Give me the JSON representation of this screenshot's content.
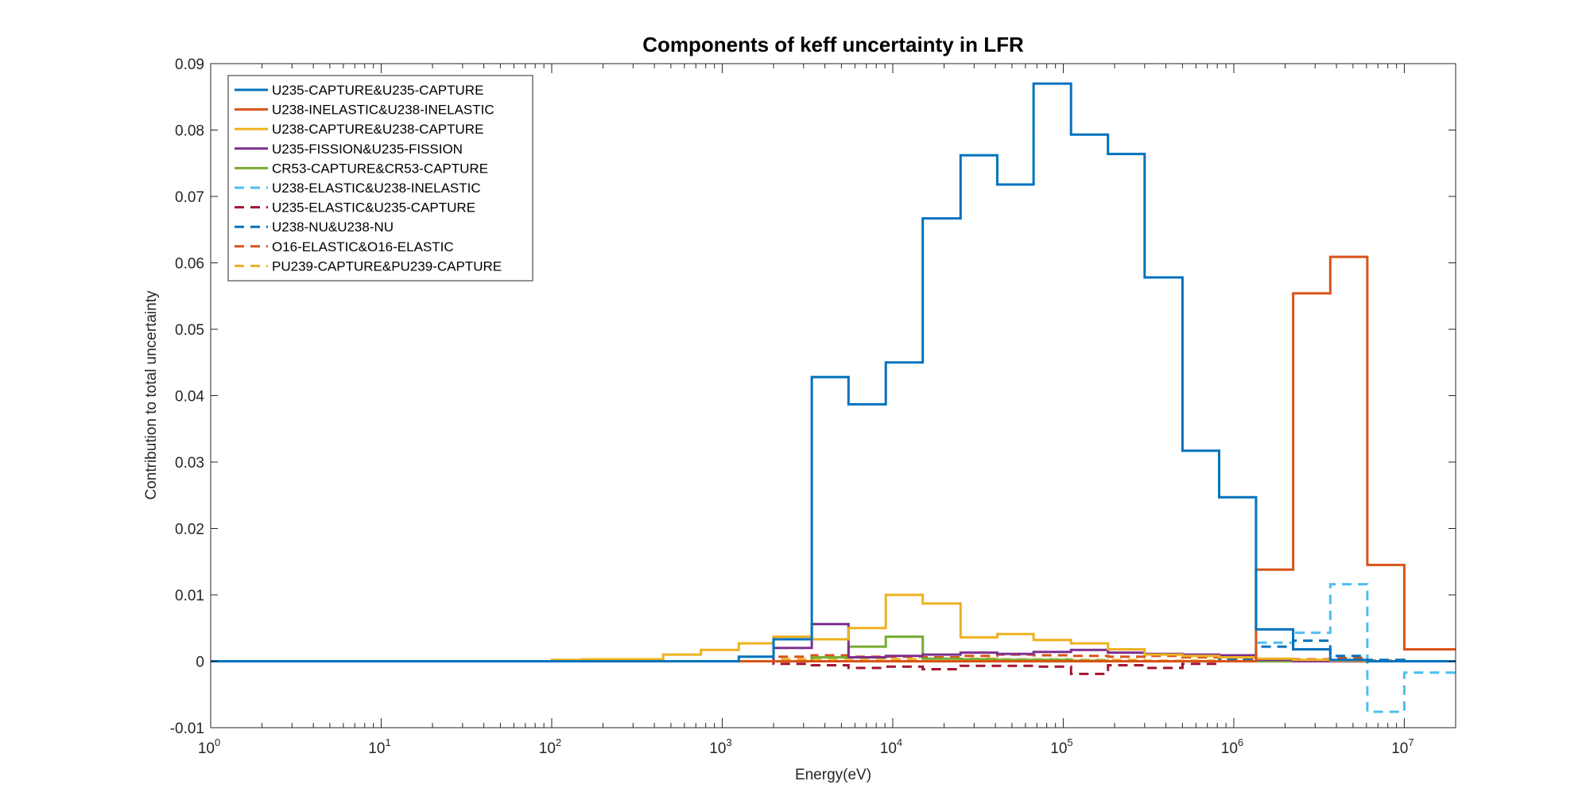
{
  "chart_data": {
    "type": "line",
    "title": "Components of keff uncertainty in LFR",
    "xlabel": "Energy(eV)",
    "ylabel": "Contribution to total uncertainty",
    "xscale": "log",
    "xlim": [
      1,
      20000000
    ],
    "ylim": [
      -0.01,
      0.09
    ],
    "grid": false,
    "legend_position": "top-left",
    "x_ticks": [
      {
        "base": "10",
        "exp": "0",
        "value": 1
      },
      {
        "base": "10",
        "exp": "1",
        "value": 10
      },
      {
        "base": "10",
        "exp": "2",
        "value": 100
      },
      {
        "base": "10",
        "exp": "3",
        "value": 1000
      },
      {
        "base": "10",
        "exp": "4",
        "value": 10000
      },
      {
        "base": "10",
        "exp": "5",
        "value": 100000
      },
      {
        "base": "10",
        "exp": "6",
        "value": 1000000
      },
      {
        "base": "10",
        "exp": "7",
        "value": 10000000
      }
    ],
    "y_ticks": [
      {
        "label": "-0.01",
        "value": -0.01
      },
      {
        "label": "0",
        "value": 0
      },
      {
        "label": "0.01",
        "value": 0.01
      },
      {
        "label": "0.02",
        "value": 0.02
      },
      {
        "label": "0.03",
        "value": 0.03
      },
      {
        "label": "0.04",
        "value": 0.04
      },
      {
        "label": "0.05",
        "value": 0.05
      },
      {
        "label": "0.06",
        "value": 0.06
      },
      {
        "label": "0.07",
        "value": 0.07
      },
      {
        "label": "0.08",
        "value": 0.08
      },
      {
        "label": "0.09",
        "value": 0.09
      }
    ],
    "energy_bin_edges": [
      1,
      100.0,
      150,
      240,
      450,
      750,
      1250,
      2000,
      3350,
      5500,
      9100,
      15000,
      25000,
      41000,
      67000,
      111000,
      183000,
      300000,
      500000,
      820000,
      1350000,
      2230000,
      3680000,
      6070000,
      10000000,
      20000000
    ],
    "series": [
      {
        "name": "U235-CAPTURE&U235-CAPTURE",
        "color": "#0072BD",
        "dash": "solid",
        "values": [
          0,
          0,
          0,
          0,
          0,
          0,
          0.0007,
          0.0033,
          0.0428,
          0.0387,
          0.045,
          0.0667,
          0.0762,
          0.0718,
          0.087,
          0.0793,
          0.0764,
          0.0578,
          0.0317,
          0.0247,
          0.0048,
          0.0018,
          0.0002,
          0,
          0
        ]
      },
      {
        "name": "U238-INELASTIC&U238-INELASTIC",
        "color": "#D95319",
        "dash": "solid",
        "values": [
          0,
          0,
          0,
          0,
          0,
          0,
          0,
          0,
          0,
          0,
          0,
          0,
          0,
          0,
          0,
          0,
          0,
          0,
          0,
          0,
          0.0138,
          0.0554,
          0.0609,
          0.0145,
          0.0018
        ]
      },
      {
        "name": "U238-CAPTURE&U238-CAPTURE",
        "color": "#EDB120",
        "dash": "solid",
        "values": [
          0,
          0.0002,
          0.0003,
          0.0003,
          0.001,
          0.0017,
          0.0027,
          0.0037,
          0.0033,
          0.005,
          0.01,
          0.0087,
          0.0036,
          0.0041,
          0.0032,
          0.0027,
          0.0018,
          0.001,
          0.0008,
          0.0006,
          0.0004,
          0.0002,
          0.0001,
          0,
          0
        ]
      },
      {
        "name": "U235-FISSION&U235-FISSION",
        "color": "#7E2F8E",
        "dash": "solid",
        "values": [
          0,
          0,
          0,
          0,
          0,
          0,
          0,
          0.002,
          0.0056,
          0.0006,
          0.0008,
          0.001,
          0.0013,
          0.0011,
          0.0014,
          0.0017,
          0.0013,
          0.0011,
          0.001,
          0.0009,
          0.0002,
          0,
          0,
          0,
          0
        ]
      },
      {
        "name": "CR53-CAPTURE&CR53-CAPTURE",
        "color": "#77AC30",
        "dash": "solid",
        "values": [
          0,
          0,
          0,
          0,
          0,
          0,
          0,
          0,
          0.0006,
          0.0022,
          0.0037,
          0.0004,
          0.0003,
          0.0002,
          0.0002,
          0.0001,
          0,
          0,
          0,
          0,
          0,
          0,
          0,
          0,
          0
        ]
      },
      {
        "name": "U238-ELASTIC&U238-INELASTIC",
        "color": "#4DBEEE",
        "dash": "dashed",
        "values": [
          0,
          0,
          0,
          0,
          0,
          0,
          0,
          0,
          0,
          0,
          0,
          0,
          0,
          0,
          0,
          0,
          0,
          0,
          0,
          0,
          0.0028,
          0.0043,
          0.0116,
          -0.0076,
          -0.0017
        ]
      },
      {
        "name": "U235-ELASTIC&U235-CAPTURE",
        "color": "#A2142F",
        "dash": "dashed",
        "values": [
          0,
          0,
          0,
          0,
          0,
          0,
          0,
          -0.0004,
          -0.0006,
          -0.001,
          -0.0008,
          -0.0012,
          -0.0007,
          -0.0007,
          -0.0008,
          -0.0019,
          -0.0006,
          -0.001,
          -0.0004,
          0,
          0,
          0,
          0,
          0,
          0
        ]
      },
      {
        "name": "U238-NU&U238-NU",
        "color": "#0072BD",
        "dash": "dashed",
        "values": [
          0,
          0,
          0,
          0,
          0,
          0,
          0,
          0,
          0,
          0,
          0,
          0,
          0,
          0,
          0,
          0,
          0,
          0,
          0,
          0.0002,
          0.0022,
          0.0031,
          0.0008,
          0.0002,
          0
        ]
      },
      {
        "name": "O16-ELASTIC&O16-ELASTIC",
        "color": "#D95319",
        "dash": "dashed",
        "values": [
          0,
          0,
          0,
          0,
          0,
          0,
          0,
          0.0007,
          0.0009,
          0.0007,
          0.0007,
          0.0006,
          0.0008,
          0.001,
          0.0009,
          0.0008,
          0.0007,
          0.0008,
          0.0006,
          0.0004,
          0.0003,
          0.0003,
          0.0005,
          0.0001,
          0
        ]
      },
      {
        "name": "PU239-CAPTURE&PU239-CAPTURE",
        "color": "#EDB120",
        "dash": "dashed",
        "values": [
          0,
          0,
          0,
          0,
          0,
          0,
          0,
          0.0003,
          0.0004,
          0.0004,
          0.0003,
          0.0004,
          0.0004,
          0.0003,
          0.0003,
          0.0002,
          0.0002,
          0.0001,
          0.0001,
          0,
          0,
          0,
          0,
          0,
          0
        ]
      }
    ]
  }
}
